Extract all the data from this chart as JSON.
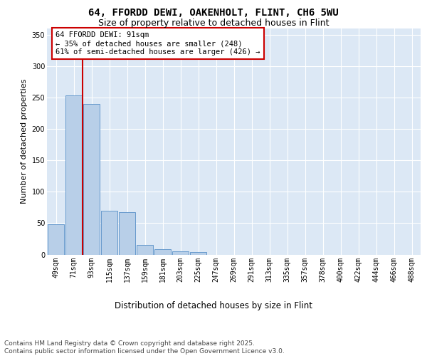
{
  "title1": "64, FFORDD DEWI, OAKENHOLT, FLINT, CH6 5WU",
  "title2": "Size of property relative to detached houses in Flint",
  "xlabel": "Distribution of detached houses by size in Flint",
  "ylabel": "Number of detached properties",
  "categories": [
    "49sqm",
    "71sqm",
    "93sqm",
    "115sqm",
    "137sqm",
    "159sqm",
    "181sqm",
    "203sqm",
    "225sqm",
    "247sqm",
    "269sqm",
    "291sqm",
    "313sqm",
    "335sqm",
    "357sqm",
    "378sqm",
    "400sqm",
    "422sqm",
    "444sqm",
    "466sqm",
    "488sqm"
  ],
  "values": [
    48,
    253,
    240,
    70,
    67,
    15,
    8,
    5,
    4,
    0,
    0,
    0,
    0,
    0,
    0,
    0,
    0,
    0,
    0,
    0,
    0
  ],
  "bar_color": "#b8cfe8",
  "bar_edge_color": "#6699cc",
  "vline_x": 1.5,
  "vline_color": "#cc0000",
  "annotation_text": "64 FFORDD DEWI: 91sqm\n← 35% of detached houses are smaller (248)\n61% of semi-detached houses are larger (426) →",
  "annotation_box_facecolor": "#ffffff",
  "annotation_box_edgecolor": "#cc0000",
  "ylim": [
    0,
    360
  ],
  "yticks": [
    0,
    50,
    100,
    150,
    200,
    250,
    300,
    350
  ],
  "fig_bg_color": "#ffffff",
  "plot_bg_color": "#dce8f5",
  "grid_color": "#ffffff",
  "footnote": "Contains HM Land Registry data © Crown copyright and database right 2025.\nContains public sector information licensed under the Open Government Licence v3.0.",
  "title1_fontsize": 10,
  "title2_fontsize": 9,
  "xlabel_fontsize": 8.5,
  "ylabel_fontsize": 8,
  "tick_fontsize": 7,
  "annotation_fontsize": 7.5,
  "footnote_fontsize": 6.5
}
